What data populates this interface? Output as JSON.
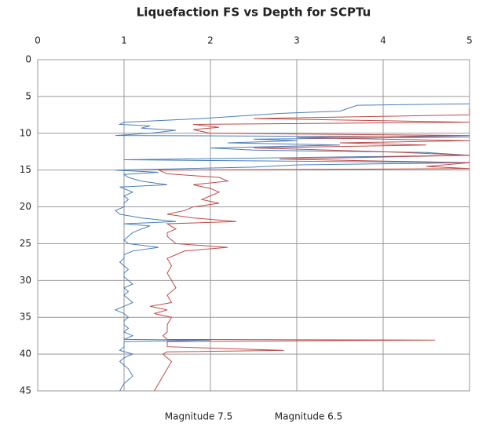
{
  "chart_data": {
    "type": "line",
    "title": "Liquefaction FS vs Depth for SCPTu",
    "xlim": [
      0,
      5
    ],
    "xticks": [
      0,
      1,
      2,
      3,
      4,
      5
    ],
    "ylim": [
      0,
      45
    ],
    "yticks": [
      0,
      5,
      10,
      15,
      20,
      25,
      30,
      35,
      40,
      45
    ],
    "y_inverted": true,
    "x_axis_position": "top",
    "grid": true,
    "legend": "bottom",
    "series": [
      {
        "name": "Magnitude 7.5",
        "color": "#4a7ebb",
        "y": [
          6.0,
          6.2,
          7.0,
          7.3,
          8.0,
          8.5,
          8.8,
          9.0,
          9.3,
          9.6,
          10.0,
          10.3,
          10.5,
          10.8,
          11.0,
          11.3,
          11.6,
          12.0,
          12.3,
          12.6,
          13.0,
          13.3,
          13.6,
          14.0,
          14.3,
          14.6,
          15.0,
          15.3,
          15.6,
          16.0,
          16.5,
          17.0,
          17.3,
          18,
          18.5,
          19,
          19.5,
          20,
          20.5,
          21,
          21.5,
          22,
          22.3,
          22.6,
          23,
          23.5,
          24,
          24.5,
          25,
          25.5,
          26,
          26.5,
          27,
          27.5,
          28,
          28.5,
          29,
          29.5,
          30,
          30.5,
          31,
          31.5,
          32,
          33,
          33.5,
          34,
          34.5,
          35,
          35.5,
          36,
          36.5,
          37,
          37.5,
          38,
          38.1,
          38.3,
          39,
          39.5,
          40,
          40.5,
          41,
          42,
          43,
          44,
          45
        ],
        "x": [
          5,
          3.7,
          3.5,
          2.8,
          1.9,
          1.0,
          0.95,
          1.3,
          1.2,
          1.6,
          1.3,
          0.9,
          5,
          2.5,
          3.0,
          2.2,
          3.5,
          2.0,
          2.5,
          4.5,
          5,
          3.0,
          1.0,
          5,
          3.0,
          2.5,
          0.9,
          1.4,
          1.0,
          1.05,
          1.2,
          1.5,
          0.95,
          1.1,
          1.0,
          1.05,
          1.0,
          1.0,
          0.9,
          0.95,
          1.2,
          1.6,
          1.0,
          1.3,
          1.2,
          1.1,
          1.05,
          1.0,
          1.05,
          1.4,
          1.1,
          1.0,
          1.0,
          0.95,
          1.0,
          1.05,
          1.0,
          1.0,
          1.05,
          1.1,
          1.0,
          1.05,
          1.0,
          1.1,
          1.0,
          0.9,
          1.0,
          1.05,
          1.0,
          1.0,
          1.05,
          1.0,
          1.1,
          1.0,
          2.0,
          1.0,
          1.0,
          0.95,
          1.1,
          1.0,
          0.95,
          1.05,
          1.1,
          1.0,
          0.95
        ]
      },
      {
        "name": "Magnitude 6.5",
        "color": "#be4b48",
        "y": [
          6.5,
          7.5,
          8.0,
          8.5,
          8.8,
          9.2,
          9.5,
          10.0,
          10.3,
          10.6,
          11.0,
          11.3,
          11.6,
          12.0,
          12.5,
          13.0,
          13.5,
          14.0,
          14.5,
          14.8,
          15.0,
          15.5,
          16.0,
          16.5,
          17.0,
          17.5,
          18,
          18.5,
          19,
          19.5,
          20,
          20.5,
          21,
          21.5,
          22,
          22.3,
          23,
          23.5,
          24,
          25,
          25.5,
          26,
          26.5,
          27,
          28,
          29,
          30,
          31,
          32,
          33,
          33.5,
          34,
          34.5,
          35,
          36,
          37,
          37.5,
          38,
          38.1,
          38.3,
          39,
          39.5,
          39.7,
          40,
          41,
          42,
          43,
          44,
          45
        ],
        "x": [
          5,
          5,
          2.5,
          5,
          1.8,
          2.1,
          1.8,
          2.0,
          5,
          3.0,
          5,
          3.5,
          4.5,
          2.5,
          4.0,
          5,
          2.8,
          5,
          4.5,
          5,
          1.4,
          1.5,
          2.1,
          2.2,
          1.8,
          2.0,
          2.1,
          2.0,
          1.9,
          2.1,
          1.8,
          1.7,
          1.5,
          1.8,
          2.3,
          1.5,
          1.6,
          1.5,
          1.5,
          1.6,
          2.2,
          1.7,
          1.6,
          1.5,
          1.55,
          1.5,
          1.55,
          1.6,
          1.5,
          1.55,
          1.3,
          1.5,
          1.35,
          1.55,
          1.5,
          1.5,
          1.45,
          1.5,
          4.6,
          1.5,
          1.5,
          2.85,
          1.5,
          1.45,
          1.55,
          1.5,
          1.45,
          1.4,
          1.35
        ]
      }
    ]
  }
}
